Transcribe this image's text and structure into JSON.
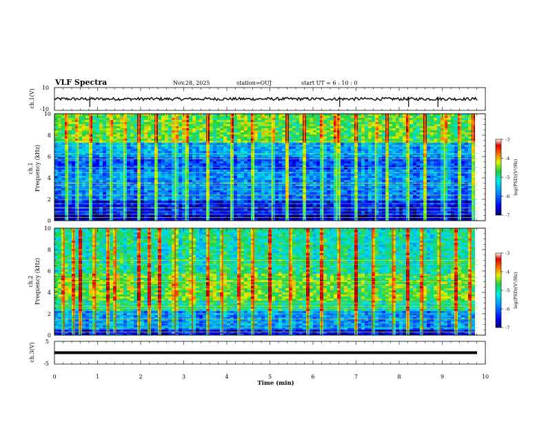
{
  "header": {
    "title": "VLF Spectra",
    "date": "Nov.28, 2025",
    "station": "station=OUJ",
    "start": "start  UT =   6 : 10 : 0"
  },
  "chart_data": {
    "type": "heatmap",
    "x": {
      "label": "Time (min)",
      "range": [
        0,
        10
      ],
      "ticks": [
        "0",
        "1",
        "2",
        "3",
        "4",
        "5",
        "6",
        "7",
        "8",
        "9",
        "10"
      ],
      "data_end": 9.83
    },
    "panels": [
      {
        "id": "ch1-waveform",
        "type": "line",
        "ylabel": "ch.1(V)",
        "yrange": [
          -10,
          10
        ],
        "ytick_labels": [
          "10",
          "-10"
        ],
        "baseline": 0,
        "spike_times": [
          0.82,
          6.62,
          8.22,
          8.9
        ]
      },
      {
        "id": "ch1-spectrogram",
        "type": "heatmap",
        "ylabel_channel": "ch.1",
        "ylabel_quantity": "Frequency (kHz)",
        "yrange": [
          0,
          10
        ],
        "ytick_labels": [
          "0",
          "2",
          "4",
          "6",
          "8",
          "10"
        ],
        "colorbar": {
          "label": "log(PSD)(V²/Hz)",
          "range": [
            -7,
            -3
          ],
          "tick_labels": [
            "-3",
            "-4",
            "-5",
            "-6",
            "-7"
          ],
          "colormap": [
            "#00007f",
            "#0000ff",
            "#0080ff",
            "#00ffff",
            "#80ff80",
            "#ffff00",
            "#ff8000",
            "#ff0000",
            "#7f0000",
            "#ffffff"
          ]
        },
        "hum_lines_khz": [
          0.3,
          0.6,
          0.9,
          1.2,
          1.6,
          2.0,
          2.4,
          2.9,
          3.3,
          3.5,
          4.5,
          5.0,
          5.8,
          6.3,
          7.0,
          7.4
        ],
        "sferic_times": [
          0.3,
          0.55,
          0.82,
          1.3,
          1.62,
          1.96,
          2.35,
          2.81,
          3.05,
          3.55,
          4.1,
          4.62,
          5.05,
          5.4,
          5.8,
          6.23,
          6.55,
          6.62,
          7.0,
          7.45,
          7.72,
          8.22,
          8.6,
          9.05,
          9.42,
          9.71
        ],
        "notes": "low values (blue) dominate 0-7 kHz, high activity (green/yellow) above 7 kHz"
      },
      {
        "id": "ch2-spectrogram",
        "type": "heatmap",
        "ylabel_channel": "ch.2",
        "ylabel_quantity": "Frequency (kHz)",
        "yrange": [
          0,
          10
        ],
        "ytick_labels": [
          "0",
          "2",
          "4",
          "6",
          "8",
          "10"
        ],
        "colorbar": {
          "label": "log(PSD)(V²/Hz)",
          "range": [
            -7,
            -3
          ],
          "tick_labels": [
            "-3",
            "-4",
            "-5",
            "-6",
            "-7"
          ],
          "colormap": [
            "#00007f",
            "#0000ff",
            "#0080ff",
            "#00ffff",
            "#80ff80",
            "#ffff00",
            "#ff8000",
            "#ff0000",
            "#7f0000",
            "#ffffff"
          ]
        },
        "hum_lines_khz": [
          0.3,
          0.7,
          1.1,
          1.5,
          2.0,
          2.5,
          2.7,
          3.0,
          4.6,
          5.0,
          5.4,
          6.6,
          7.0
        ],
        "sferic_times": [
          0.22,
          0.45,
          0.6,
          0.95,
          1.25,
          1.42,
          1.97,
          2.2,
          2.45,
          2.8,
          3.2,
          3.58,
          3.9,
          4.3,
          4.62,
          5.0,
          5.46,
          5.88,
          6.2,
          6.62,
          7.0,
          7.38,
          7.85,
          8.2,
          8.55,
          8.95,
          9.32,
          9.66
        ],
        "notes": "strong green/yellow band 3-6 kHz, red sferic columns"
      },
      {
        "id": "ch3-waveform",
        "type": "line",
        "ylabel": "ch.3(V)",
        "yrange": [
          -5,
          5
        ],
        "ytick_labels": [
          "5",
          "-5"
        ],
        "baseline": 0
      }
    ]
  }
}
